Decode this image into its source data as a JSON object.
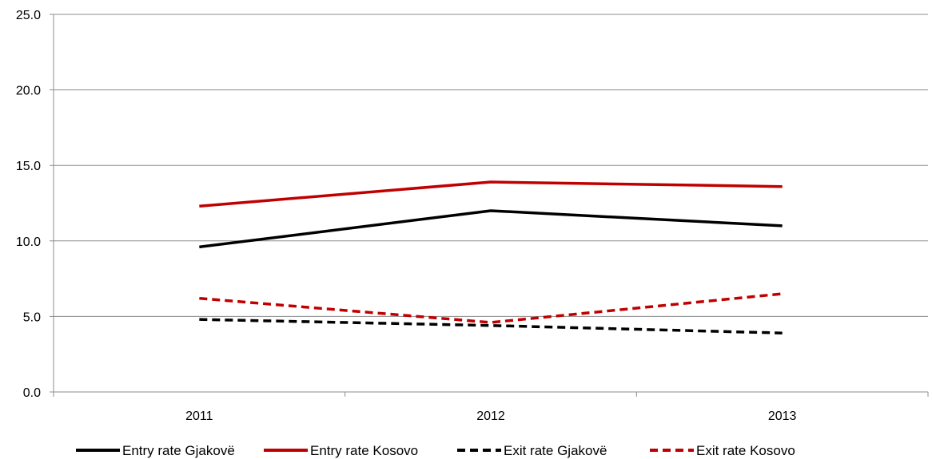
{
  "chart_data": {
    "type": "line",
    "title": "",
    "xlabel": "",
    "ylabel": "",
    "categories": [
      "2011",
      "2012",
      "2013"
    ],
    "ylim": [
      0,
      25
    ],
    "yticks": [
      "0.0",
      "5.0",
      "10.0",
      "15.0",
      "20.0",
      "25.0"
    ],
    "grid": "horizontal",
    "legend_position": "bottom",
    "series": [
      {
        "name": "Entry rate Gjakovë",
        "values": [
          9.6,
          12.0,
          11.0
        ],
        "color": "#000000",
        "style": "solid"
      },
      {
        "name": "Entry rate Kosovo",
        "values": [
          12.3,
          13.9,
          13.6
        ],
        "color": "#c00000",
        "style": "solid"
      },
      {
        "name": "Exit rate Gjakovë",
        "values": [
          4.8,
          4.4,
          3.9
        ],
        "color": "#000000",
        "style": "dashed"
      },
      {
        "name": "Exit rate Kosovo",
        "values": [
          6.2,
          4.6,
          6.5
        ],
        "color": "#c00000",
        "style": "dashed"
      }
    ]
  }
}
